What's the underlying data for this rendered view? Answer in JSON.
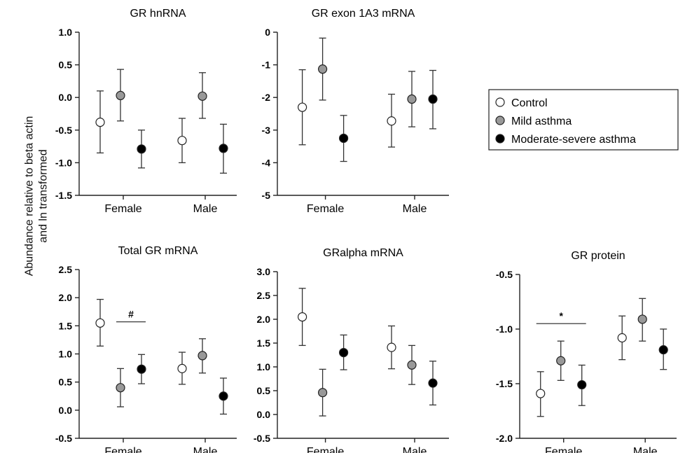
{
  "figure": {
    "ylabel_line1": "Abundance relative to beta actin",
    "ylabel_line2": "and ln transformed"
  },
  "legend": {
    "placement": "right",
    "entries": [
      {
        "label": "Control",
        "fill": "#ffffff"
      },
      {
        "label": "Mild asthma",
        "fill": "#999999"
      },
      {
        "label": "Moderate-severe asthma",
        "fill": "#000000"
      }
    ]
  },
  "chart_data": [
    {
      "type": "scatter",
      "title": "GR hnRNA",
      "categories": [
        "Female",
        "Male"
      ],
      "ylim": [
        -1.5,
        1.0
      ],
      "yticks": [
        "1.0",
        "0.5",
        "0.0",
        "-0.5",
        "-1.0",
        "-1.5"
      ],
      "annotation": null,
      "series": [
        {
          "name": "Control",
          "values": [
            -0.38,
            -0.66
          ],
          "lower": [
            -0.85,
            -1.0
          ],
          "upper": [
            0.1,
            -0.32
          ]
        },
        {
          "name": "Mild asthma",
          "values": [
            0.03,
            0.02
          ],
          "lower": [
            -0.36,
            -0.32
          ],
          "upper": [
            0.43,
            0.38
          ]
        },
        {
          "name": "Moderate-severe asthma",
          "values": [
            -0.79,
            -0.78
          ],
          "lower": [
            -1.08,
            -1.16
          ],
          "upper": [
            -0.5,
            -0.41
          ]
        }
      ]
    },
    {
      "type": "scatter",
      "title": "GR exon 1A3 mRNA",
      "categories": [
        "Female",
        "Male"
      ],
      "ylim": [
        -5,
        0
      ],
      "yticks": [
        "0",
        "-1",
        "-2",
        "-3",
        "-4",
        "-5"
      ],
      "annotation": null,
      "series": [
        {
          "name": "Control",
          "values": [
            -2.3,
            -2.72
          ],
          "lower": [
            -3.45,
            -3.52
          ],
          "upper": [
            -1.15,
            -1.9
          ]
        },
        {
          "name": "Mild asthma",
          "values": [
            -1.13,
            -2.05
          ],
          "lower": [
            -2.08,
            -2.9
          ],
          "upper": [
            -0.18,
            -1.2
          ]
        },
        {
          "name": "Moderate-severe asthma",
          "values": [
            -3.25,
            -2.05
          ],
          "lower": [
            -3.96,
            -2.96
          ],
          "upper": [
            -2.55,
            -1.17
          ]
        }
      ]
    },
    {
      "type": "scatter",
      "title": "Total GR mRNA",
      "categories": [
        "Female",
        "Male"
      ],
      "ylim": [
        -0.5,
        2.5
      ],
      "yticks": [
        "2.5",
        "2.0",
        "1.5",
        "1.0",
        "0.5",
        "0.0",
        "-0.5"
      ],
      "annotation": {
        "text": "#",
        "group": 0,
        "from": 1,
        "to": 2,
        "y": 1.57
      },
      "series": [
        {
          "name": "Control",
          "values": [
            1.55,
            0.74
          ],
          "lower": [
            1.14,
            0.46
          ],
          "upper": [
            1.97,
            1.03
          ]
        },
        {
          "name": "Mild asthma",
          "values": [
            0.4,
            0.97
          ],
          "lower": [
            0.06,
            0.66
          ],
          "upper": [
            0.74,
            1.27
          ]
        },
        {
          "name": "Moderate-severe asthma",
          "values": [
            0.73,
            0.25
          ],
          "lower": [
            0.47,
            -0.07
          ],
          "upper": [
            0.99,
            0.57
          ]
        }
      ]
    },
    {
      "type": "scatter",
      "title": "GRalpha mRNA",
      "categories": [
        "Female",
        "Male"
      ],
      "ylim": [
        -0.5,
        3.0
      ],
      "yticks": [
        "3.0",
        "2.5",
        "2.0",
        "1.5",
        "1.0",
        "0.5",
        "0.0",
        "-0.5"
      ],
      "annotation": null,
      "series": [
        {
          "name": "Control",
          "values": [
            2.05,
            1.41
          ],
          "lower": [
            1.45,
            0.96
          ],
          "upper": [
            2.65,
            1.86
          ]
        },
        {
          "name": "Mild asthma",
          "values": [
            0.46,
            1.04
          ],
          "lower": [
            -0.03,
            0.63
          ],
          "upper": [
            0.95,
            1.45
          ]
        },
        {
          "name": "Moderate-severe asthma",
          "values": [
            1.3,
            0.66
          ],
          "lower": [
            0.94,
            0.2
          ],
          "upper": [
            1.67,
            1.12
          ]
        }
      ]
    },
    {
      "type": "scatter",
      "title": "GR protein",
      "categories": [
        "Female",
        "Male"
      ],
      "ylim": [
        -2.0,
        -0.5
      ],
      "yticks": [
        "-0.5",
        "-1.0",
        "-1.5",
        "-2.0"
      ],
      "annotation": {
        "text": "*",
        "group": 0,
        "from": 0,
        "to": 2,
        "y": -0.95
      },
      "series": [
        {
          "name": "Control",
          "values": [
            -1.59,
            -1.08
          ],
          "lower": [
            -1.8,
            -1.28
          ],
          "upper": [
            -1.39,
            -0.88
          ]
        },
        {
          "name": "Mild asthma",
          "values": [
            -1.29,
            -0.91
          ],
          "lower": [
            -1.47,
            -1.11
          ],
          "upper": [
            -1.11,
            -0.72
          ]
        },
        {
          "name": "Moderate-severe asthma",
          "values": [
            -1.51,
            -1.19
          ],
          "lower": [
            -1.7,
            -1.37
          ],
          "upper": [
            -1.33,
            -1.0
          ]
        }
      ]
    }
  ]
}
